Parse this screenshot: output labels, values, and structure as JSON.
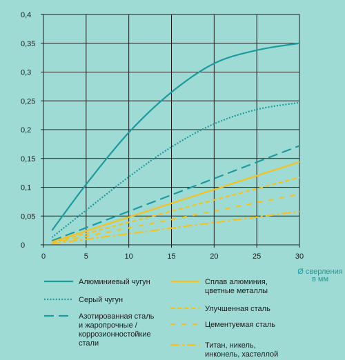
{
  "chart_data": {
    "type": "line",
    "xlabel": "Ø сверления\nв мм",
    "ylabel": "",
    "xlim": [
      0,
      30
    ],
    "ylim": [
      0,
      0.4
    ],
    "x_ticks": [
      "0",
      "5",
      "10",
      "15",
      "20",
      "25",
      "30"
    ],
    "y_ticks": [
      "0",
      "0,05",
      "0,1",
      "0,15",
      "0,2",
      "0,25",
      "0,3",
      "0,35",
      "0,4"
    ],
    "grid": true,
    "legend_position": "bottom",
    "colors": {
      "teal": "#1d9aa0",
      "yellow": "#f5c21b",
      "background": "#9fdbd5",
      "grid": "#1b1b1b"
    },
    "series": [
      {
        "name": "Алюминиевый чугун",
        "color": "#1d9aa0",
        "style": "solid",
        "x": [
          1,
          5,
          10,
          15,
          20,
          25,
          30
        ],
        "y": [
          0.025,
          0.105,
          0.195,
          0.265,
          0.315,
          0.338,
          0.35
        ]
      },
      {
        "name": "Серый чугун",
        "color": "#1d9aa0",
        "style": "dotted",
        "x": [
          1,
          5,
          10,
          15,
          20,
          25,
          30
        ],
        "y": [
          0.013,
          0.06,
          0.118,
          0.17,
          0.21,
          0.235,
          0.247
        ]
      },
      {
        "name": "Азотированная сталь\nи жаропрочные /\nкоррозионностойкие\nстали",
        "color": "#1d9aa0",
        "style": "dashed",
        "x": [
          1,
          30
        ],
        "y": [
          0.007,
          0.172
        ]
      },
      {
        "name": "Сплав алюминия,\nцветные металлы",
        "color": "#f5c21b",
        "style": "solid",
        "x": [
          1,
          30
        ],
        "y": [
          0.005,
          0.144
        ]
      },
      {
        "name": "Улучшенная сталь",
        "color": "#f5c21b",
        "style": "short-dashed",
        "x": [
          1,
          30
        ],
        "y": [
          0.004,
          0.117
        ]
      },
      {
        "name": "Цементуемая сталь",
        "color": "#f5c21b",
        "style": "sparse-dashed",
        "x": [
          1,
          30
        ],
        "y": [
          0.003,
          0.088
        ]
      },
      {
        "name": "Титан, никель,\nинконель, хастеллой",
        "color": "#f5c21b",
        "style": "dash-dot",
        "x": [
          1,
          30
        ],
        "y": [
          0.002,
          0.058
        ]
      }
    ]
  }
}
